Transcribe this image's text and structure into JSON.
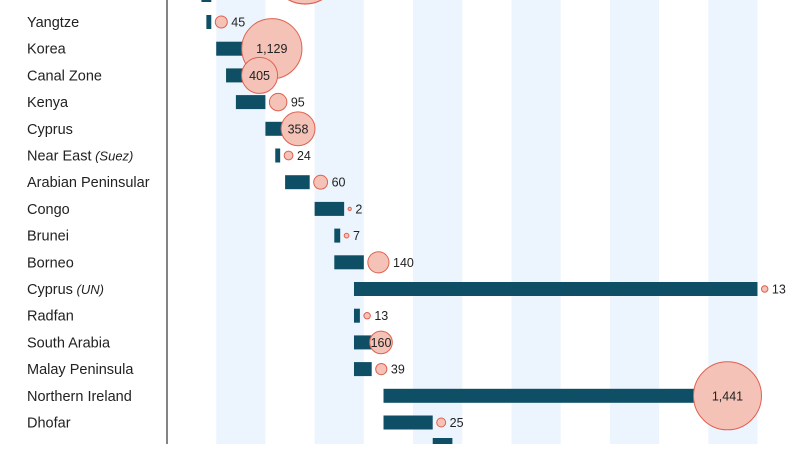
{
  "chart_data": {
    "type": "bar",
    "categories": [
      {
        "name": "Yangtze",
        "note": ""
      },
      {
        "name": "Korea",
        "note": ""
      },
      {
        "name": "Canal Zone",
        "note": ""
      },
      {
        "name": "Kenya",
        "note": ""
      },
      {
        "name": "Cyprus",
        "note": ""
      },
      {
        "name": "Near East",
        "note": "(Suez)"
      },
      {
        "name": "Arabian Peninsular",
        "note": ""
      },
      {
        "name": "Congo",
        "note": ""
      },
      {
        "name": "Brunei",
        "note": ""
      },
      {
        "name": "Borneo",
        "note": ""
      },
      {
        "name": "Cyprus",
        "note": "(UN)"
      },
      {
        "name": "Radfan",
        "note": ""
      },
      {
        "name": "South Arabia",
        "note": ""
      },
      {
        "name": "Malay Peninsula",
        "note": ""
      },
      {
        "name": "Northern Ireland",
        "note": ""
      },
      {
        "name": "Dhofar",
        "note": ""
      }
    ],
    "series": [
      {
        "values": [
          [
            1949,
            1949.5
          ],
          [
            1950,
            1953
          ],
          [
            1951,
            1954
          ],
          [
            1952,
            1955
          ],
          [
            1955,
            1957
          ],
          [
            1956,
            1956.5
          ],
          [
            1957,
            1959.5
          ],
          [
            1960,
            1963
          ],
          [
            1962,
            1962.6
          ],
          [
            1962,
            1965
          ],
          [
            1964,
            2005
          ],
          [
            1964,
            1964.6
          ],
          [
            1964,
            1966
          ],
          [
            1964,
            1965.8
          ],
          [
            1967,
            2005
          ],
          [
            1967,
            1972
          ]
        ]
      },
      {
        "values": [
          45,
          1129,
          405,
          95,
          358,
          24,
          60,
          2,
          7,
          140,
          13,
          13,
          160,
          39,
          1441,
          25
        ]
      }
    ],
    "labels": [
      "45",
      "1,129",
      "405",
      "95",
      "358",
      "24",
      "60",
      "2",
      "7",
      "140",
      "13",
      "13",
      "160",
      "39",
      "1,441",
      "25"
    ],
    "xlim": [
      1945,
      2008
    ],
    "title": "",
    "xlabel": "",
    "ylabel": "",
    "grid": true,
    "colors": {
      "bar": "#0e4f66",
      "bubble_fill": "#f4c2b6",
      "bubble_stroke": "#e06050",
      "band": "#ecf5fd",
      "text": "#222222",
      "axis": "#333333"
    }
  }
}
